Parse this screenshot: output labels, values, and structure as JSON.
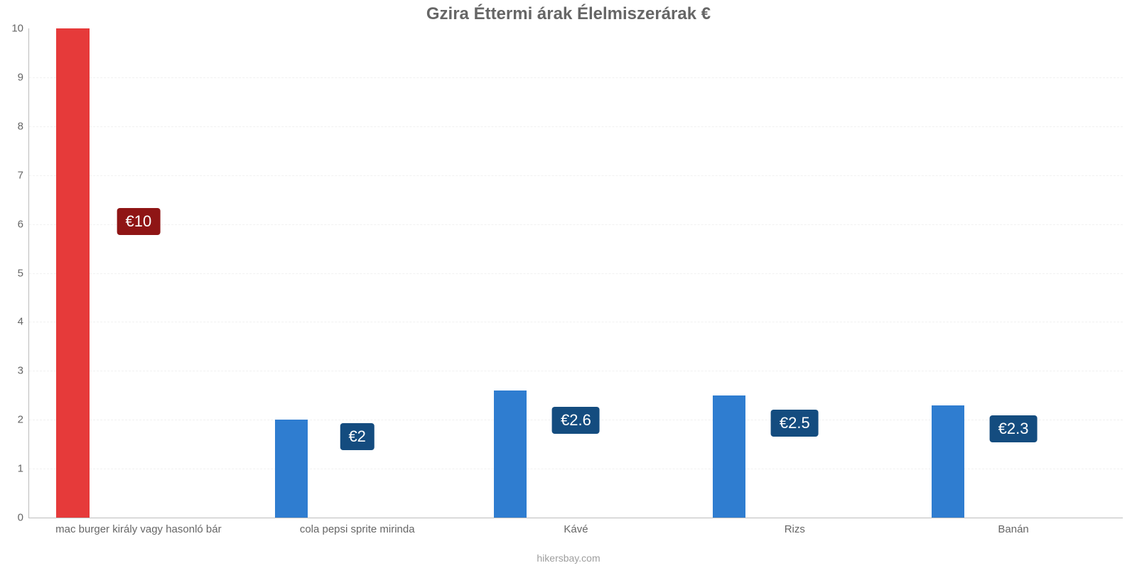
{
  "chart": {
    "type": "bar",
    "title": "Gzira Éttermi árak Élelmiszerárak €",
    "title_fontsize": 24,
    "title_color": "#666666",
    "caption": "hikersbay.com",
    "caption_fontsize": 14,
    "caption_color": "#9e9e9e",
    "background_color": "#ffffff",
    "axis_color": "#bdbdbd",
    "tick_label_color": "#666666",
    "tick_label_fontsize": 15,
    "x_tick_label_fontsize": 15,
    "grid_color": "#f1f1f1",
    "currency_prefix": "€",
    "ylim": [
      0,
      10
    ],
    "ytick_step": 1,
    "bar_width": 0.75,
    "value_label_fontsize": 22,
    "colors": {
      "red": "#e63a3a",
      "blue": "#2f7dd0",
      "red_badge": "#8f1515",
      "blue_badge": "#144c7f"
    },
    "categories": [
      {
        "label": "mac burger király vagy hasonló bár",
        "value": 10,
        "value_label": "€10",
        "color_key": "red",
        "badge_color_key": "red_badge"
      },
      {
        "label": "cola pepsi sprite mirinda",
        "value": 2,
        "value_label": "€2",
        "color_key": "blue",
        "badge_color_key": "blue_badge"
      },
      {
        "label": "Kávé",
        "value": 2.6,
        "value_label": "€2.6",
        "color_key": "blue",
        "badge_color_key": "blue_badge"
      },
      {
        "label": "Rizs",
        "value": 2.5,
        "value_label": "€2.5",
        "color_key": "blue",
        "badge_color_key": "blue_badge"
      },
      {
        "label": "Banán",
        "value": 2.3,
        "value_label": "€2.3",
        "color_key": "blue",
        "badge_color_key": "blue_badge"
      }
    ]
  }
}
